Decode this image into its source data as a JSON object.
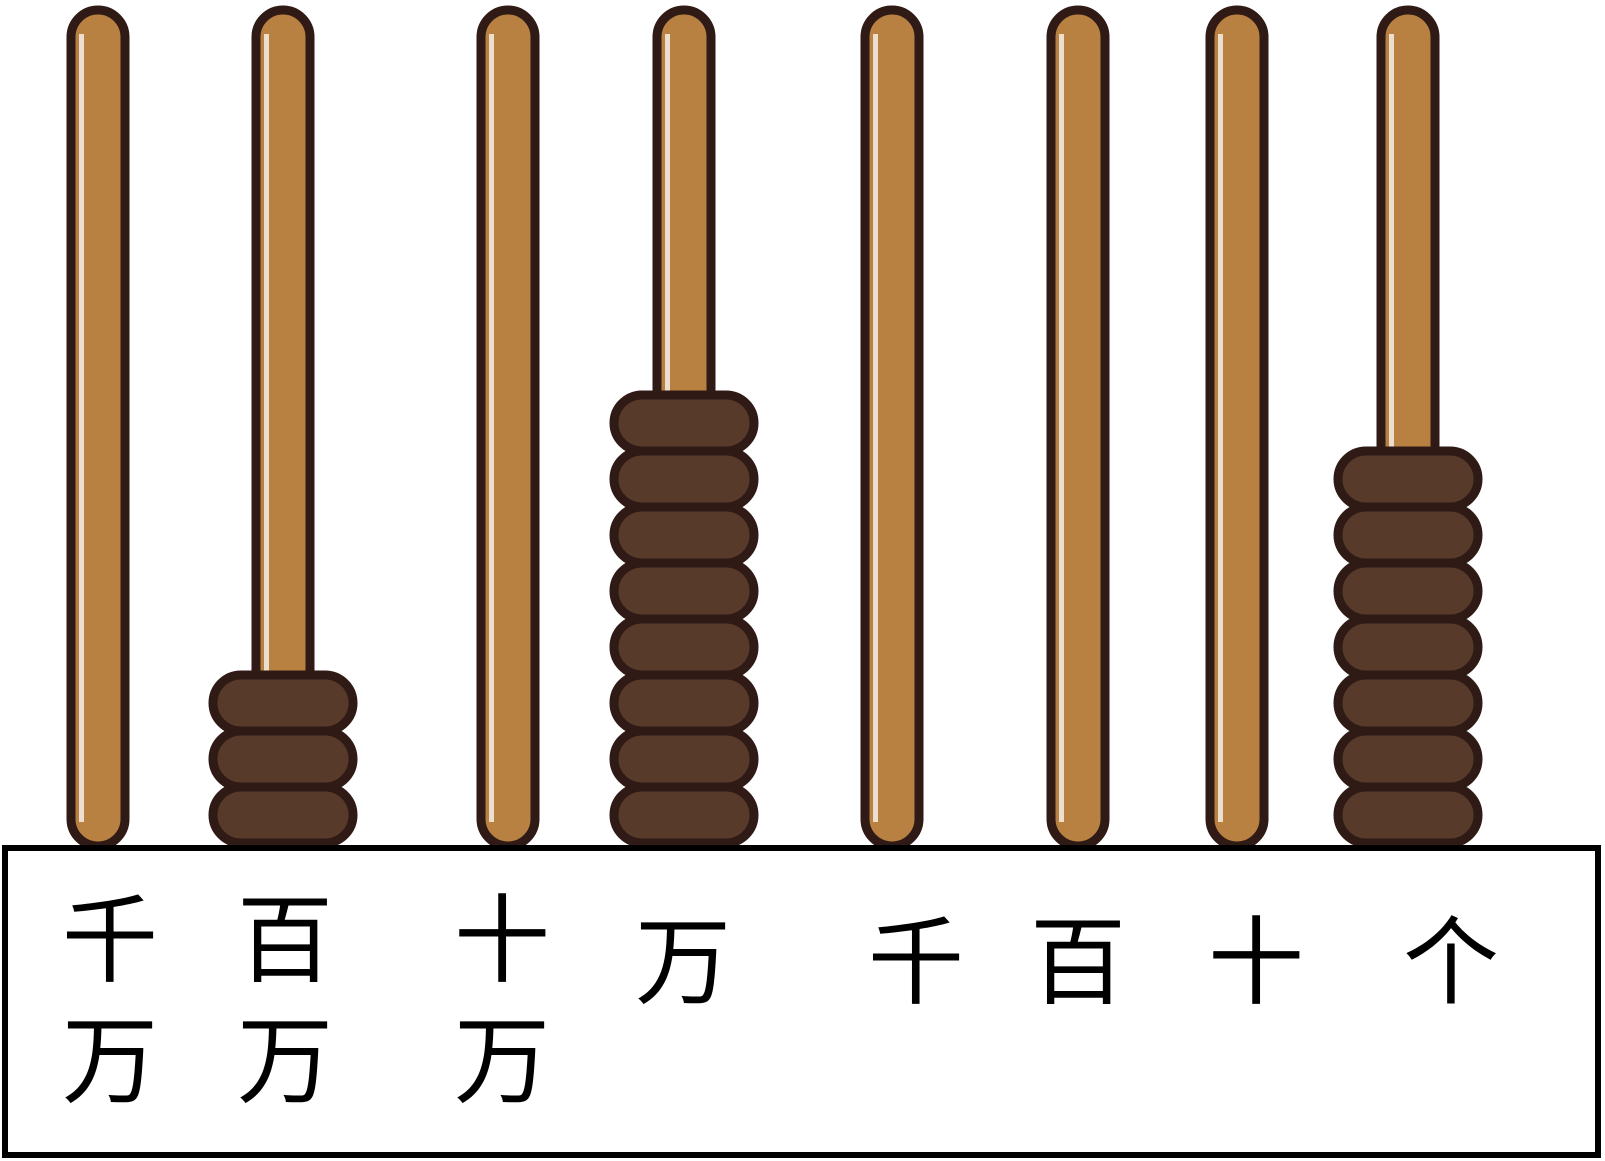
{
  "figure": {
    "type": "abacus",
    "colors": {
      "rod_fill": "#b98141",
      "bead_fill": "#583a2a",
      "outline": "#2f1a15",
      "label_box_border": "#000000",
      "label_text": "#000000",
      "background": "#ffffff"
    },
    "rods": [
      {
        "place_label_line1": "千",
        "place_label_line2": "万",
        "beads": 0
      },
      {
        "place_label_line1": "百",
        "place_label_line2": "万",
        "beads": 3
      },
      {
        "place_label_line1": "十",
        "place_label_line2": "万",
        "beads": 0
      },
      {
        "place_label_line1": "万",
        "place_label_line2": "",
        "beads": 8
      },
      {
        "place_label_line1": "千",
        "place_label_line2": "",
        "beads": 0
      },
      {
        "place_label_line1": "百",
        "place_label_line2": "",
        "beads": 0
      },
      {
        "place_label_line1": "十",
        "place_label_line2": "",
        "beads": 0
      },
      {
        "place_label_line1": "个",
        "place_label_line2": "",
        "beads": 7
      }
    ]
  }
}
